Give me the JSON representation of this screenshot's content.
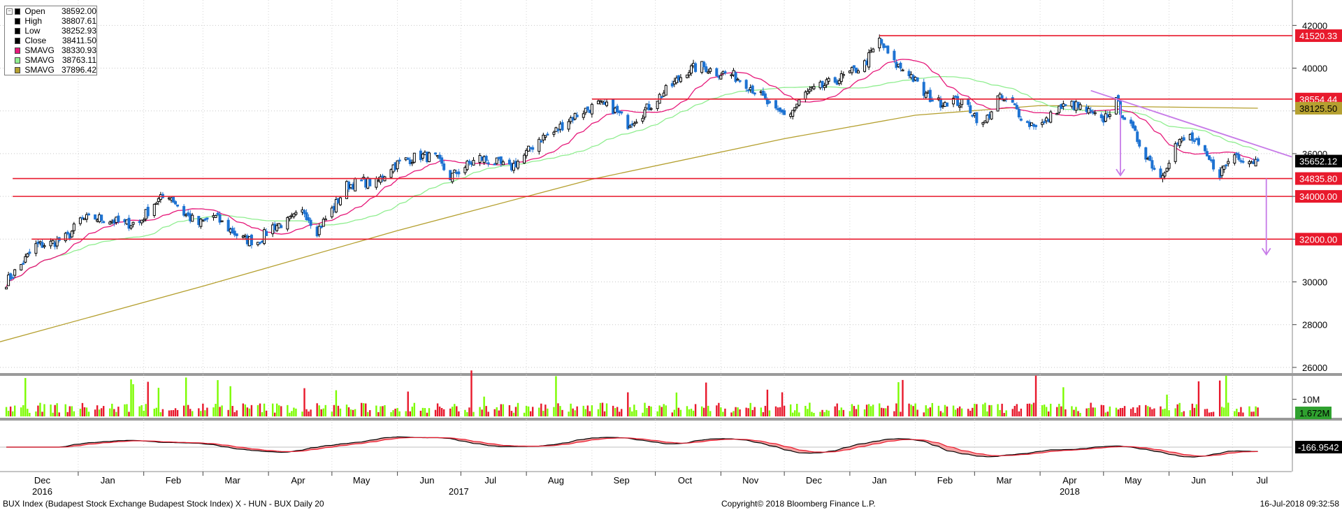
{
  "legend": [
    {
      "name": "Open",
      "value": "38592.00",
      "color": "#000000"
    },
    {
      "name": "High",
      "value": "38807.61",
      "color": "#000000"
    },
    {
      "name": "Low",
      "value": "38252.93",
      "color": "#000000"
    },
    {
      "name": "Close",
      "value": "38411.50",
      "color": "#000000"
    },
    {
      "name": "SMAVG",
      "value": "38330.93",
      "color": "#e6197a"
    },
    {
      "name": "SMAVG",
      "value": "38763.11",
      "color": "#90ee90"
    },
    {
      "name": "SMAVG",
      "value": "37896.42",
      "color": "#b5a030"
    }
  ],
  "footer": {
    "left": "BUX Index (Budapest Stock Exchange Budapest Stock Index) X - HUN - BUX Daily 20",
    "center": "Copyright© 2018 Bloomberg Finance L.P.",
    "right": "16-Jul-2018 09:32:58"
  },
  "colors": {
    "up": "#000000",
    "down": "#1e73d2",
    "level": "#e8192c",
    "trend": "#c77be8",
    "ma_fast": "#e6197a",
    "ma_mid": "#90ee90",
    "ma_slow": "#b5a030",
    "vol_up": "#7cfc00",
    "vol_down": "#e8192c",
    "macd": "#000000",
    "signal": "#e8192c",
    "fill": "#f4a6a6"
  },
  "chart_data": {
    "type": "candlestick",
    "price_axis": {
      "ticks": [
        "42000",
        "40000",
        "38000",
        "36000",
        "34000",
        "32000",
        "30000",
        "28000",
        "26000"
      ],
      "range": [
        25800,
        42600
      ]
    },
    "months": [
      "Dec",
      "Jan",
      "Feb",
      "Mar",
      "Apr",
      "May",
      "Jun",
      "Jul",
      "Aug",
      "Sep",
      "Oct",
      "Nov",
      "Dec",
      "Jan",
      "Feb",
      "Mar",
      "Apr",
      "May",
      "Jun",
      "Jul"
    ],
    "years": [
      "2016",
      "2017",
      "2018"
    ],
    "levels": [
      {
        "value": 41520.33,
        "label": "41520.33",
        "from": "2018-01-15"
      },
      {
        "value": 38554.44,
        "label": "38554.44",
        "from": "2017-09-01"
      },
      {
        "value": 34835.8,
        "label": "34835.80",
        "from": "2016-12-01"
      },
      {
        "value": 34000.0,
        "label": "34000.00",
        "from": "2016-12-01"
      },
      {
        "value": 32000.0,
        "label": "32000.00",
        "from": "2016-12-10"
      }
    ],
    "last_price": {
      "value": 35652.12,
      "label": "35652.12"
    },
    "ma_slow_tag": {
      "value": 38125.5,
      "label": "38125.50"
    },
    "volume_axis": {
      "tick": "10M",
      "last_label": "1.672M"
    },
    "macd_last_label": "-166.9542",
    "series_note": "weekly-sampled closes",
    "closes": [
      {
        "date": "2016-11-28",
        "close": 30000
      },
      {
        "date": "2016-12-05",
        "close": 30800
      },
      {
        "date": "2016-12-12",
        "close": 31700
      },
      {
        "date": "2016-12-19",
        "close": 31800
      },
      {
        "date": "2016-12-27",
        "close": 32100
      },
      {
        "date": "2017-01-02",
        "close": 32900
      },
      {
        "date": "2017-01-09",
        "close": 33000
      },
      {
        "date": "2017-01-16",
        "close": 32900
      },
      {
        "date": "2017-01-23",
        "close": 32700
      },
      {
        "date": "2017-01-30",
        "close": 32800
      },
      {
        "date": "2017-02-06",
        "close": 33700
      },
      {
        "date": "2017-02-13",
        "close": 34100
      },
      {
        "date": "2017-02-20",
        "close": 33200
      },
      {
        "date": "2017-02-27",
        "close": 32700
      },
      {
        "date": "2017-03-06",
        "close": 33100
      },
      {
        "date": "2017-03-13",
        "close": 32500
      },
      {
        "date": "2017-03-20",
        "close": 32000
      },
      {
        "date": "2017-03-27",
        "close": 31900
      },
      {
        "date": "2017-04-03",
        "close": 32600
      },
      {
        "date": "2017-04-10",
        "close": 32800
      },
      {
        "date": "2017-04-18",
        "close": 33300
      },
      {
        "date": "2017-04-24",
        "close": 32400
      },
      {
        "date": "2017-05-02",
        "close": 33500
      },
      {
        "date": "2017-05-08",
        "close": 34500
      },
      {
        "date": "2017-05-15",
        "close": 34700
      },
      {
        "date": "2017-05-22",
        "close": 34600
      },
      {
        "date": "2017-05-29",
        "close": 35400
      },
      {
        "date": "2017-06-05",
        "close": 35700
      },
      {
        "date": "2017-06-12",
        "close": 35900
      },
      {
        "date": "2017-06-19",
        "close": 35800
      },
      {
        "date": "2017-06-26",
        "close": 34900
      },
      {
        "date": "2017-07-03",
        "close": 35400
      },
      {
        "date": "2017-07-10",
        "close": 35800
      },
      {
        "date": "2017-07-17",
        "close": 35600
      },
      {
        "date": "2017-07-24",
        "close": 35300
      },
      {
        "date": "2017-07-31",
        "close": 35900
      },
      {
        "date": "2017-08-07",
        "close": 36700
      },
      {
        "date": "2017-08-14",
        "close": 37000
      },
      {
        "date": "2017-08-21",
        "close": 37600
      },
      {
        "date": "2017-08-28",
        "close": 38000
      },
      {
        "date": "2017-09-04",
        "close": 38300
      },
      {
        "date": "2017-09-11",
        "close": 38100
      },
      {
        "date": "2017-09-18",
        "close": 37400
      },
      {
        "date": "2017-09-25",
        "close": 37900
      },
      {
        "date": "2017-10-02",
        "close": 38600
      },
      {
        "date": "2017-10-09",
        "close": 39200
      },
      {
        "date": "2017-10-16",
        "close": 39900
      },
      {
        "date": "2017-10-23",
        "close": 40100
      },
      {
        "date": "2017-10-30",
        "close": 39800
      },
      {
        "date": "2017-11-06",
        "close": 39700
      },
      {
        "date": "2017-11-13",
        "close": 39300
      },
      {
        "date": "2017-11-20",
        "close": 38700
      },
      {
        "date": "2017-11-27",
        "close": 37900
      },
      {
        "date": "2017-12-04",
        "close": 37900
      },
      {
        "date": "2017-12-11",
        "close": 38800
      },
      {
        "date": "2017-12-18",
        "close": 39100
      },
      {
        "date": "2017-12-27",
        "close": 39500
      },
      {
        "date": "2018-01-02",
        "close": 39800
      },
      {
        "date": "2018-01-08",
        "close": 40200
      },
      {
        "date": "2018-01-15",
        "close": 41300
      },
      {
        "date": "2018-01-22",
        "close": 40200
      },
      {
        "date": "2018-01-29",
        "close": 39800
      },
      {
        "date": "2018-02-05",
        "close": 38800
      },
      {
        "date": "2018-02-12",
        "close": 38400
      },
      {
        "date": "2018-02-19",
        "close": 38500
      },
      {
        "date": "2018-02-26",
        "close": 38200
      },
      {
        "date": "2018-03-05",
        "close": 37300
      },
      {
        "date": "2018-03-12",
        "close": 38600
      },
      {
        "date": "2018-03-19",
        "close": 38300
      },
      {
        "date": "2018-03-26",
        "close": 37400
      },
      {
        "date": "2018-04-03",
        "close": 37400
      },
      {
        "date": "2018-04-09",
        "close": 38100
      },
      {
        "date": "2018-04-16",
        "close": 38300
      },
      {
        "date": "2018-04-23",
        "close": 38000
      },
      {
        "date": "2018-04-30",
        "close": 37500
      },
      {
        "date": "2018-05-07",
        "close": 38400
      },
      {
        "date": "2018-05-14",
        "close": 37200
      },
      {
        "date": "2018-05-22",
        "close": 35800
      },
      {
        "date": "2018-05-28",
        "close": 34900
      },
      {
        "date": "2018-06-04",
        "close": 36400
      },
      {
        "date": "2018-06-11",
        "close": 36800
      },
      {
        "date": "2018-06-18",
        "close": 35900
      },
      {
        "date": "2018-06-25",
        "close": 35100
      },
      {
        "date": "2018-07-02",
        "close": 36000
      },
      {
        "date": "2018-07-09",
        "close": 35700
      },
      {
        "date": "2018-07-13",
        "close": 35650
      }
    ]
  }
}
